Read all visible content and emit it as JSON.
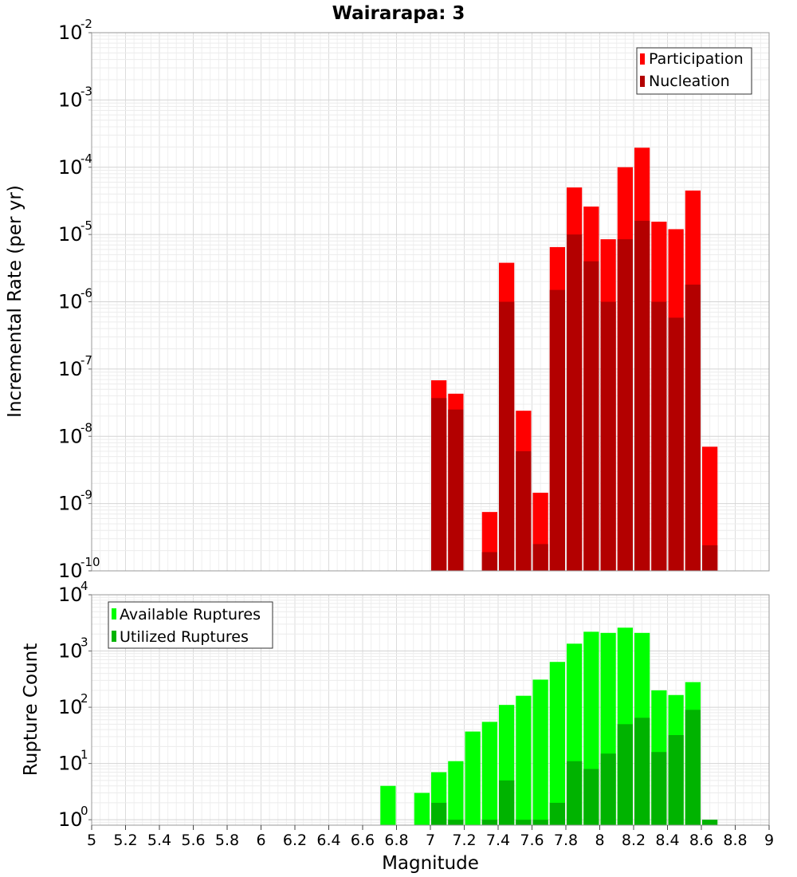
{
  "title": "Wairarapa: 3",
  "xlabel": "Magnitude",
  "colors": {
    "participation": "#ff0000",
    "nucleation": "#b30000",
    "available": "#00ff00",
    "utilized": "#00b300"
  },
  "chart_data": [
    {
      "type": "bar",
      "name": "rate-panel",
      "ylabel": "Incremental Rate (per yr)",
      "yscale": "log",
      "ylim": [
        1e-10,
        0.01
      ],
      "xlim": [
        5,
        9
      ],
      "grid": true,
      "legend_position": "top-right",
      "y_tick_exponents": [
        "-10",
        "-9",
        "-8",
        "-7",
        "-6",
        "-5",
        "-4",
        "-3",
        "-2"
      ],
      "bin_width": 0.1,
      "series": [
        {
          "name": "Participation",
          "points": [
            [
              7.05,
              6.8e-08
            ],
            [
              7.15,
              4.3e-08
            ],
            [
              7.35,
              7.5e-10
            ],
            [
              7.45,
              3.8e-06
            ],
            [
              7.55,
              2.4e-08
            ],
            [
              7.65,
              1.45e-09
            ],
            [
              7.75,
              6.5e-06
            ],
            [
              7.85,
              5e-05
            ],
            [
              7.95,
              2.6e-05
            ],
            [
              8.05,
              8.5e-06
            ],
            [
              8.15,
              0.0001
            ],
            [
              8.25,
              0.000195
            ],
            [
              8.35,
              1.55e-05
            ],
            [
              8.45,
              1.2e-05
            ],
            [
              8.55,
              4.5e-05
            ],
            [
              8.65,
              7e-09
            ]
          ]
        },
        {
          "name": "Nucleation",
          "points": [
            [
              7.05,
              3.7e-08
            ],
            [
              7.15,
              2.5e-08
            ],
            [
              7.35,
              1.9e-10
            ],
            [
              7.45,
              1e-06
            ],
            [
              7.55,
              6e-09
            ],
            [
              7.65,
              2.5e-10
            ],
            [
              7.75,
              1.5e-06
            ],
            [
              7.85,
              1e-05
            ],
            [
              7.95,
              4e-06
            ],
            [
              8.05,
              1e-06
            ],
            [
              8.15,
              8.5e-06
            ],
            [
              8.25,
              1.6e-05
            ],
            [
              8.35,
              1e-06
            ],
            [
              8.45,
              5.8e-07
            ],
            [
              8.55,
              1.8e-06
            ],
            [
              8.65,
              2.4e-10
            ]
          ]
        }
      ]
    },
    {
      "type": "bar",
      "name": "count-panel",
      "ylabel": "Rupture Count",
      "yscale": "log",
      "ylim": [
        0.8,
        10000
      ],
      "xlim": [
        5,
        9
      ],
      "grid": true,
      "legend_position": "top-left",
      "y_tick_exponents": [
        "0",
        "1",
        "2",
        "3",
        "4"
      ],
      "x_ticks": [
        "5",
        "5.2",
        "5.4",
        "5.6",
        "5.8",
        "6",
        "6.2",
        "6.4",
        "6.6",
        "6.8",
        "7",
        "7.2",
        "7.4",
        "7.6",
        "7.8",
        "8",
        "8.2",
        "8.4",
        "8.6",
        "8.8",
        "9"
      ],
      "bin_width": 0.1,
      "series": [
        {
          "name": "Available Ruptures",
          "points": [
            [
              6.75,
              4
            ],
            [
              6.95,
              3
            ],
            [
              7.05,
              7
            ],
            [
              7.15,
              11
            ],
            [
              7.25,
              37
            ],
            [
              7.35,
              55
            ],
            [
              7.45,
              110
            ],
            [
              7.55,
              160
            ],
            [
              7.65,
              310
            ],
            [
              7.75,
              640
            ],
            [
              7.85,
              1350
            ],
            [
              7.95,
              2200
            ],
            [
              8.05,
              2100
            ],
            [
              8.15,
              2600
            ],
            [
              8.25,
              2100
            ],
            [
              8.35,
              200
            ],
            [
              8.45,
              165
            ],
            [
              8.55,
              280
            ]
          ]
        },
        {
          "name": "Utilized Ruptures",
          "points": [
            [
              7.05,
              2
            ],
            [
              7.15,
              1
            ],
            [
              7.35,
              1
            ],
            [
              7.45,
              5
            ],
            [
              7.55,
              1
            ],
            [
              7.65,
              1
            ],
            [
              7.75,
              2
            ],
            [
              7.85,
              11
            ],
            [
              7.95,
              8
            ],
            [
              8.05,
              15
            ],
            [
              8.15,
              50
            ],
            [
              8.25,
              65
            ],
            [
              8.35,
              16
            ],
            [
              8.45,
              32
            ],
            [
              8.55,
              90
            ],
            [
              8.65,
              1
            ]
          ]
        }
      ]
    }
  ]
}
